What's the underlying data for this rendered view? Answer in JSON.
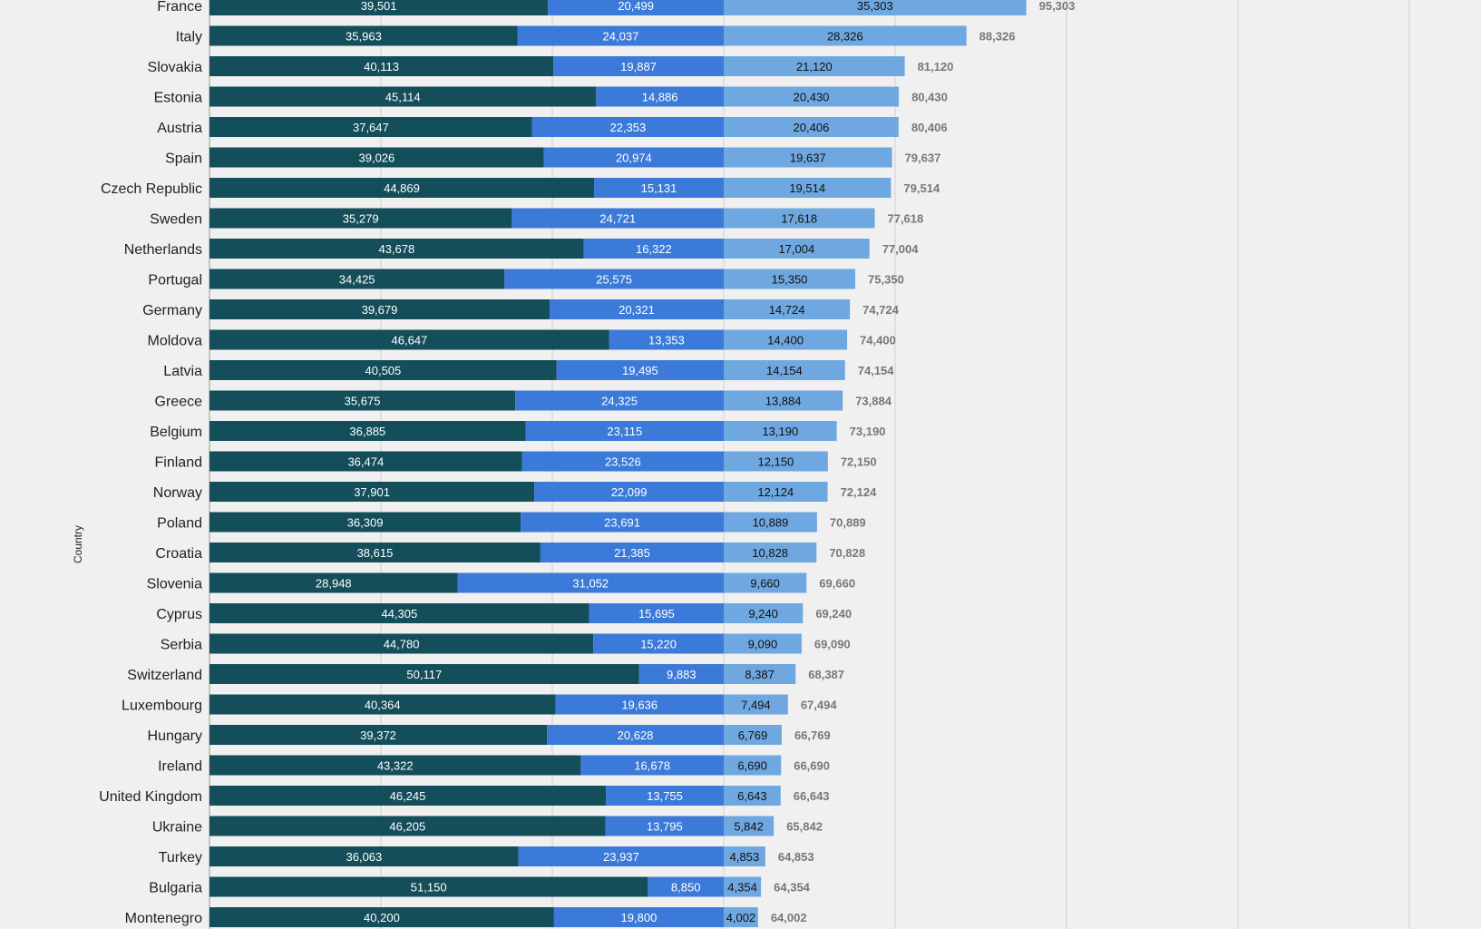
{
  "chart_data": {
    "type": "bar",
    "orientation": "horizontal",
    "stacked": true,
    "ylabel": "Country",
    "xlim": [
      0,
      140000
    ],
    "grid": true,
    "categories": [
      "France",
      "Italy",
      "Slovakia",
      "Estonia",
      "Austria",
      "Spain",
      "Czech Republic",
      "Sweden",
      "Netherlands",
      "Portugal",
      "Germany",
      "Moldova",
      "Latvia",
      "Greece",
      "Belgium",
      "Finland",
      "Norway",
      "Poland",
      "Croatia",
      "Slovenia",
      "Cyprus",
      "Serbia",
      "Switzerland",
      "Luxembourg",
      "Hungary",
      "Ireland",
      "United Kingdom",
      "Ukraine",
      "Turkey",
      "Bulgaria",
      "Montenegro"
    ],
    "series": [
      {
        "color": "#134e5a",
        "values": [
          39501,
          35963,
          40113,
          45114,
          37647,
          39026,
          44869,
          35279,
          43678,
          34425,
          39679,
          46647,
          40505,
          35675,
          36885,
          36474,
          37901,
          36309,
          38615,
          28948,
          44305,
          44780,
          50117,
          40364,
          39372,
          43322,
          46245,
          46205,
          36063,
          51150,
          40200
        ]
      },
      {
        "color": "#3b7ad8",
        "values": [
          20499,
          24037,
          19887,
          14886,
          22353,
          20974,
          15131,
          24721,
          16322,
          25575,
          20321,
          13353,
          19495,
          24325,
          23115,
          23526,
          22099,
          23691,
          21385,
          31052,
          15695,
          15220,
          9883,
          19636,
          20628,
          16678,
          13755,
          13795,
          23937,
          8850,
          19800
        ]
      },
      {
        "color": "#6fa8e0",
        "values": [
          35303,
          28326,
          21120,
          20430,
          20406,
          19637,
          19514,
          17618,
          17004,
          15350,
          14724,
          14400,
          14154,
          13884,
          13190,
          12150,
          12124,
          10889,
          10828,
          9660,
          9240,
          9090,
          8387,
          7494,
          6769,
          6690,
          6643,
          5842,
          4853,
          4354,
          4002
        ]
      }
    ],
    "totals": [
      95303,
      88326,
      81120,
      80430,
      80406,
      79637,
      79514,
      77618,
      77004,
      75350,
      74724,
      74400,
      74154,
      73884,
      73190,
      72150,
      72124,
      70889,
      70828,
      69660,
      69240,
      69090,
      68387,
      67494,
      66769,
      66690,
      66643,
      65842,
      64853,
      64354,
      64002
    ]
  },
  "colors": {
    "background": "#f0f0f0",
    "grid": "#cfcfcf",
    "axis": "#999999",
    "total_label": "#777777"
  }
}
